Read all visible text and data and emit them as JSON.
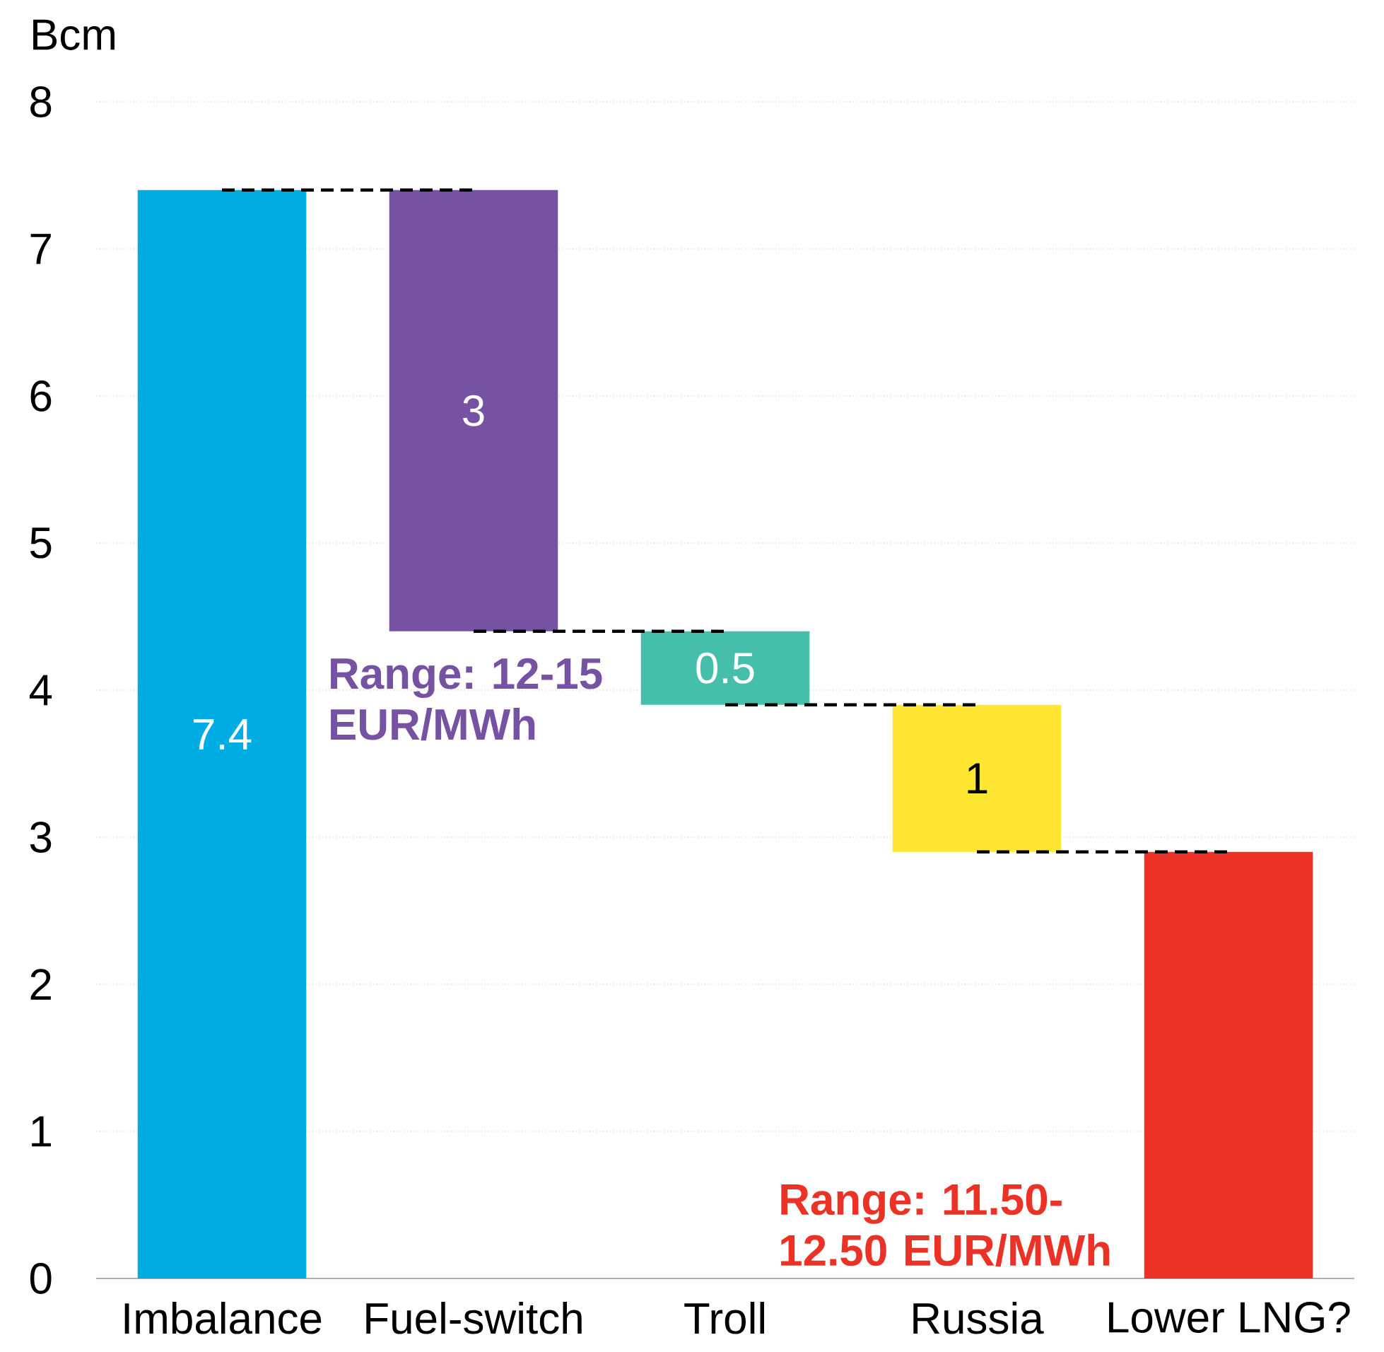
{
  "chart_data": {
    "type": "bar",
    "ylabel": "Bcm",
    "categories": [
      "Imbalance",
      "Fuel-switch",
      "Troll",
      "Russia",
      "Lower LNG?"
    ],
    "values": [
      7.4,
      3,
      0.5,
      1,
      2.9
    ],
    "base": [
      0,
      4.4,
      3.9,
      2.9,
      0
    ],
    "colors": [
      "#00ade2",
      "#7652a3",
      "#45bfaa",
      "#ffe633",
      "#ec3226"
    ],
    "value_labels": [
      "7.4",
      "3",
      "0.5",
      "1",
      null
    ],
    "series": [
      {
        "type": "line",
        "x": [
          "Imbalance",
          "Fuel-switch"
        ],
        "values": [
          7.4,
          7.4
        ],
        "color": "#000000",
        "line_style": "dashed"
      },
      {
        "type": "line",
        "x": [
          "Fuel-switch",
          "Troll"
        ],
        "values": [
          4.4,
          4.4
        ],
        "color": "#000000",
        "line_style": "dashed"
      },
      {
        "type": "line",
        "x": [
          "Troll",
          "Russia"
        ],
        "values": [
          3.9,
          3.9
        ],
        "color": "#000000",
        "line_style": "dashed"
      },
      {
        "type": "line",
        "x": [
          "Russia",
          "Lower LNG?"
        ],
        "values": [
          2.9,
          2.9
        ],
        "color": "#000000",
        "line_style": "dashed"
      }
    ],
    "ylim": [
      0,
      8
    ],
    "yticks": [
      0,
      1,
      2,
      3,
      4,
      5,
      6,
      7,
      8
    ],
    "grid": "y",
    "annotations": [
      "Range: 12-15 EUR/MWh",
      "Range: 11.50-12.50 EUR/MWh"
    ]
  }
}
